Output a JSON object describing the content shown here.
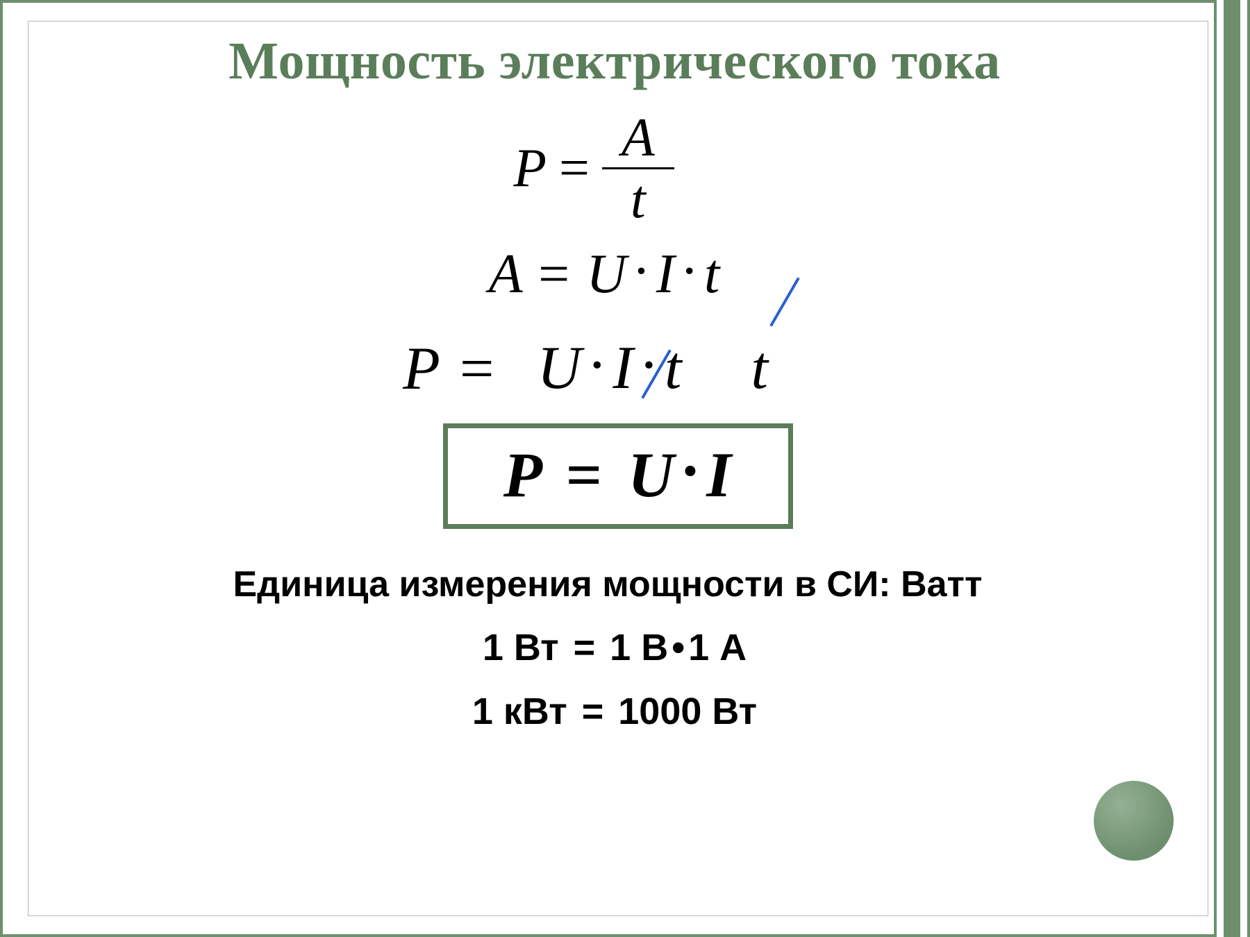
{
  "colors": {
    "accent": "#5a7d5a",
    "border": "#6d8f6d",
    "strike": "#2a5fd1",
    "text": "#000000",
    "background": "#ffffff"
  },
  "title": "Мощность электрического тока",
  "formula1": {
    "lhs": "P",
    "eq": "=",
    "num": "A",
    "den": "t"
  },
  "formula2": {
    "lhs": "A",
    "eq": "=",
    "t1": "U",
    "t2": "I",
    "t3": "t"
  },
  "formula3": {
    "lhs": "P",
    "eq": "=",
    "num_a": "U",
    "num_b": "I",
    "num_c": "t",
    "den": "t"
  },
  "boxed": {
    "lhs": "P",
    "eq": "=",
    "a": "U",
    "b": "I"
  },
  "units_label": "Единица измерения мощности в СИ: Ватт",
  "units_eq1": {
    "lhs": "1 Вт",
    "eq": "=",
    "a": "1 В",
    "b": "1 А"
  },
  "units_eq2": {
    "lhs": "1 кВт",
    "eq": "=",
    "rhs": "1000 Вт"
  }
}
